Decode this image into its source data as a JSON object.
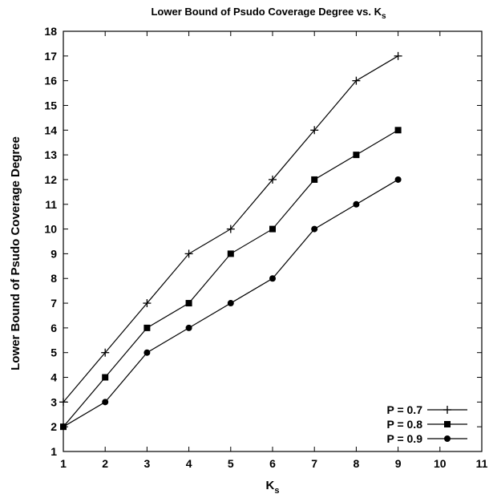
{
  "chart_data": {
    "type": "line",
    "title": "Lower Bound of Psudo Coverage Degree vs. K",
    "title_subscript": "s",
    "xlabel": "K",
    "xlabel_subscript": "s",
    "ylabel": "Lower Bound of Psudo Coverage Degree",
    "xlim": [
      1,
      11
    ],
    "ylim": [
      1,
      18
    ],
    "xticks": [
      1,
      2,
      3,
      4,
      5,
      6,
      7,
      8,
      9,
      10,
      11
    ],
    "yticks": [
      1,
      2,
      3,
      4,
      5,
      6,
      7,
      8,
      9,
      10,
      11,
      12,
      13,
      14,
      15,
      16,
      17,
      18
    ],
    "grid": false,
    "legend_position": "bottom-right",
    "x": [
      1,
      2,
      3,
      4,
      5,
      6,
      7,
      8,
      9
    ],
    "series": [
      {
        "name": "P = 0.7",
        "marker": "plus",
        "values": [
          3,
          5,
          7,
          9,
          10,
          12,
          14,
          16,
          17
        ]
      },
      {
        "name": "P = 0.8",
        "marker": "square",
        "values": [
          2,
          4,
          6,
          7,
          9,
          10,
          12,
          13,
          14
        ]
      },
      {
        "name": "P = 0.9",
        "marker": "circle",
        "values": [
          2,
          3,
          5,
          6,
          7,
          8,
          10,
          11,
          12
        ]
      }
    ]
  }
}
